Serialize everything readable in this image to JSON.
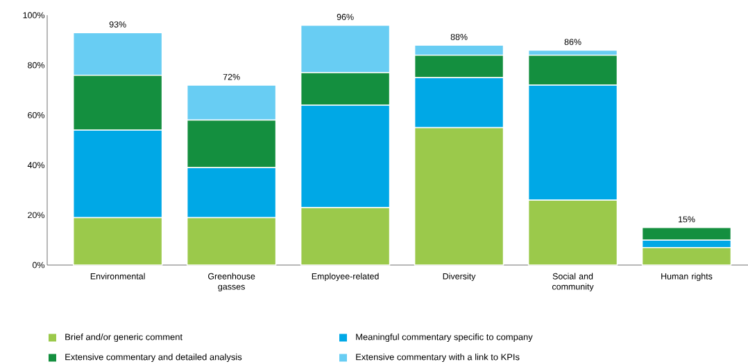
{
  "chart_data": {
    "type": "bar",
    "stacked": true,
    "categories": [
      "Environmental",
      "Greenhouse gasses",
      "Employee-related",
      "Diversity",
      "Social and community",
      "Human rights"
    ],
    "series": [
      {
        "name": "Brief and/or generic comment",
        "color": "#9bc94b",
        "values": [
          19,
          19,
          23,
          55,
          26,
          7
        ]
      },
      {
        "name": "Meaningful commentary specific to company",
        "color": "#00a8e6",
        "values": [
          35,
          20,
          41,
          20,
          46,
          3
        ]
      },
      {
        "name": "Extensive commentary and detailed analysis",
        "color": "#148f3f",
        "values": [
          22,
          19,
          13,
          9,
          12,
          5
        ]
      },
      {
        "name": "Extensive commentary with a link to KPIs",
        "color": "#68cdf3",
        "values": [
          17,
          14,
          19,
          4,
          2,
          0
        ]
      }
    ],
    "totals": [
      "93%",
      "72%",
      "96%",
      "88%",
      "86%",
      "15%"
    ],
    "ylim": [
      0,
      100
    ],
    "yticks": [
      {
        "value": 0,
        "label": "0%"
      },
      {
        "value": 20,
        "label": "20%"
      },
      {
        "value": 40,
        "label": "40%"
      },
      {
        "value": 60,
        "label": "60%"
      },
      {
        "value": 80,
        "label": "80%"
      },
      {
        "value": 100,
        "label": "100%"
      }
    ],
    "grid": false,
    "legend": "bottom"
  }
}
